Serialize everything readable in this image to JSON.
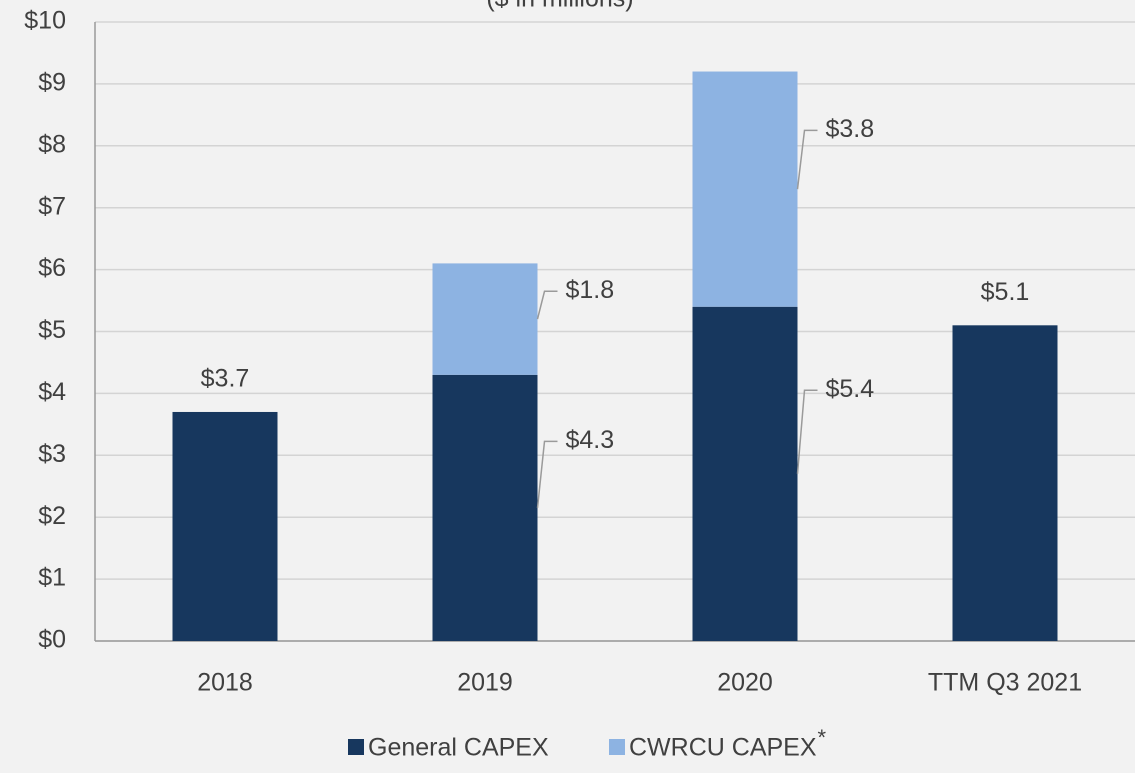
{
  "chart_data": {
    "type": "bar",
    "stacked": true,
    "subtitle": "($ in millions)",
    "categories": [
      "2018",
      "2019",
      "2020",
      "TTM Q3 2021"
    ],
    "series": [
      {
        "name": "General CAPEX",
        "color": "#17375e",
        "values": [
          3.7,
          4.3,
          5.4,
          5.1
        ],
        "value_labels": [
          "$3.7",
          "$4.3",
          "$5.4",
          "$5.1"
        ]
      },
      {
        "name": "CWRCU CAPEX",
        "color": "#8db3e2",
        "values": [
          null,
          1.8,
          3.8,
          null
        ],
        "value_labels": [
          null,
          "$1.8",
          "$3.8",
          null
        ]
      }
    ],
    "legend_footnote_mark": "*",
    "ylim": [
      0,
      10
    ],
    "yticks": [
      {
        "value": 0,
        "label": "$0"
      },
      {
        "value": 1,
        "label": "$1"
      },
      {
        "value": 2,
        "label": "$2"
      },
      {
        "value": 3,
        "label": "$3"
      },
      {
        "value": 4,
        "label": "$4"
      },
      {
        "value": 5,
        "label": "$5"
      },
      {
        "value": 6,
        "label": "$6"
      },
      {
        "value": 7,
        "label": "$7"
      },
      {
        "value": 8,
        "label": "$8"
      },
      {
        "value": 9,
        "label": "$9"
      },
      {
        "value": 10,
        "label": "$10"
      }
    ],
    "grid": true,
    "legend": "bottom"
  }
}
